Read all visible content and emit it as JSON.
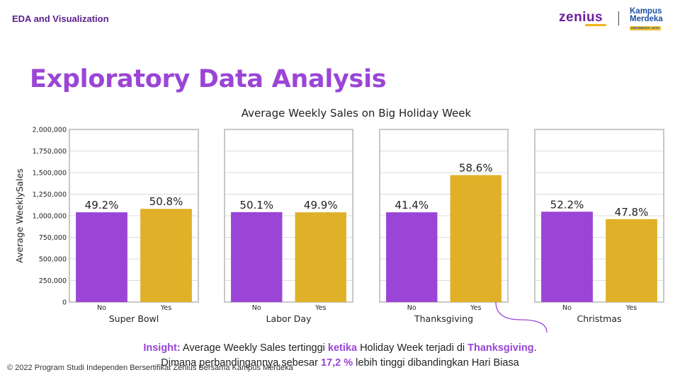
{
  "header": {
    "section_label": "EDA and Visualization",
    "logo_text": "zenius",
    "partner_logo_line1": "Kampus",
    "partner_logo_line2": "Merdeka",
    "partner_logo_sub": "INDONESIA JAYA"
  },
  "page_title": "Exploratory Data Analysis",
  "colors": {
    "no": "#9b45d6",
    "yes": "#e0b028",
    "title": "#9b45d6",
    "panel_border": "#c8c8c8"
  },
  "chart_data": {
    "type": "bar",
    "title": "Average Weekly Sales on Big Holiday Week",
    "ylabel": "Average WeeklySales",
    "ylim": [
      0,
      2000000
    ],
    "yticks": [
      "0",
      "250,000",
      "500,000",
      "750,000",
      "1,000,000",
      "1,250,000",
      "1,500,000",
      "1,750,000",
      "2,000,000"
    ],
    "ytick_values": [
      0,
      250000,
      500000,
      750000,
      1000000,
      1250000,
      1500000,
      1750000,
      2000000
    ],
    "categories": [
      "No",
      "Yes"
    ],
    "grid": true,
    "panels": [
      {
        "holiday": "Super Bowl",
        "values": [
          1040000,
          1080000
        ],
        "labels": [
          "49.2%",
          "50.8%"
        ]
      },
      {
        "holiday": "Labor Day",
        "values": [
          1042000,
          1040000
        ],
        "labels": [
          "50.1%",
          "49.9%"
        ]
      },
      {
        "holiday": "Thanksgiving",
        "values": [
          1040000,
          1471000
        ],
        "labels": [
          "41.4%",
          "58.6%"
        ]
      },
      {
        "holiday": "Christmas",
        "values": [
          1047000,
          961000
        ],
        "labels": [
          "52.2%",
          "47.8%"
        ]
      }
    ]
  },
  "insight": {
    "prefix": "Insight:",
    "text1": " Average Weekly Sales tertinggi ",
    "hl1": "ketika",
    "text2": " Holiday Week terjadi di ",
    "hl2": "Thanksgiving",
    "text3": ".",
    "text4": "Dimana perbandingannya sebesar ",
    "hl3": "17,2 %",
    "text5": " lebih tinggi dibandingkan Hari Biasa"
  },
  "footer": "© 2022 Program Studi Independen Bersertifikat Zenius Bersama Kampus Merdeka"
}
